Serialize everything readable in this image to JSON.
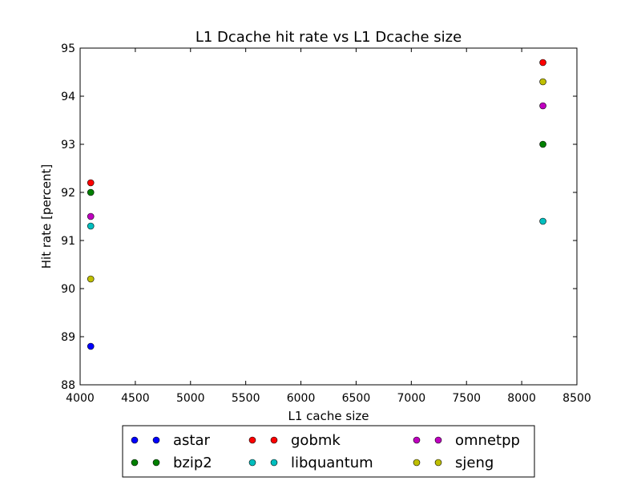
{
  "chart_data": {
    "type": "scatter",
    "title": "L1 Dcache hit rate vs L1 Dcache size",
    "xlabel": "L1 cache size",
    "ylabel": "Hit rate [percent]",
    "xlim": [
      4000,
      8500
    ],
    "ylim": [
      88,
      95
    ],
    "x_ticks": [
      4000,
      4500,
      5000,
      5500,
      6000,
      6500,
      7000,
      7500,
      8000,
      8500
    ],
    "y_ticks": [
      88,
      89,
      90,
      91,
      92,
      93,
      94,
      95
    ],
    "grid": false,
    "legend_position": "bottom, outside plot, 3 columns",
    "series": [
      {
        "name": "astar",
        "color": "#0000ff",
        "points": [
          [
            4096,
            88.8
          ]
        ]
      },
      {
        "name": "bzip2",
        "color": "#008000",
        "points": [
          [
            4096,
            92.0
          ],
          [
            8192,
            93.0
          ]
        ]
      },
      {
        "name": "gobmk",
        "color": "#ff0000",
        "points": [
          [
            4096,
            92.2
          ],
          [
            8192,
            94.7
          ]
        ]
      },
      {
        "name": "libquantum",
        "color": "#00bfbf",
        "points": [
          [
            4096,
            91.3
          ],
          [
            8192,
            91.4
          ]
        ]
      },
      {
        "name": "omnetpp",
        "color": "#bf00bf",
        "points": [
          [
            4096,
            91.5
          ],
          [
            8192,
            93.8
          ]
        ]
      },
      {
        "name": "sjeng",
        "color": "#bfbf00",
        "points": [
          [
            4096,
            90.2
          ],
          [
            8192,
            94.3
          ]
        ]
      }
    ]
  }
}
